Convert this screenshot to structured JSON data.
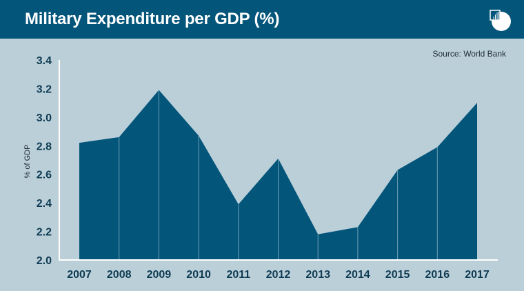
{
  "header": {
    "title": "Military Expenditure per GDP (%)",
    "logo_icon": "chart-logo-icon"
  },
  "source": "Source: World Bank",
  "colors": {
    "header_bg": "#03557a",
    "area_fill": "#03557a",
    "background": "#bbcfd9",
    "divider": "#6f9db5",
    "axis": "#ffffff",
    "tick_text": "#0e3b52"
  },
  "chart_data": {
    "type": "area",
    "title": "Military Expenditure per GDP (%)",
    "xlabel": "",
    "ylabel": "% of GDP",
    "x": [
      "2007",
      "2008",
      "2009",
      "2010",
      "2011",
      "2012",
      "2013",
      "2014",
      "2015",
      "2016",
      "2017"
    ],
    "values": [
      2.82,
      2.86,
      3.19,
      2.87,
      2.39,
      2.71,
      2.18,
      2.23,
      2.63,
      2.79,
      3.1
    ],
    "ylim": [
      2.0,
      3.4
    ],
    "yticks": [
      "2.0",
      "2.2",
      "2.4",
      "2.6",
      "2.8",
      "3.0",
      "3.2",
      "3.4"
    ],
    "ytick_values": [
      2.0,
      2.2,
      2.4,
      2.6,
      2.8,
      3.0,
      3.2,
      3.4
    ],
    "grid": false,
    "legend": "none",
    "annotation": "Source: World Bank"
  }
}
